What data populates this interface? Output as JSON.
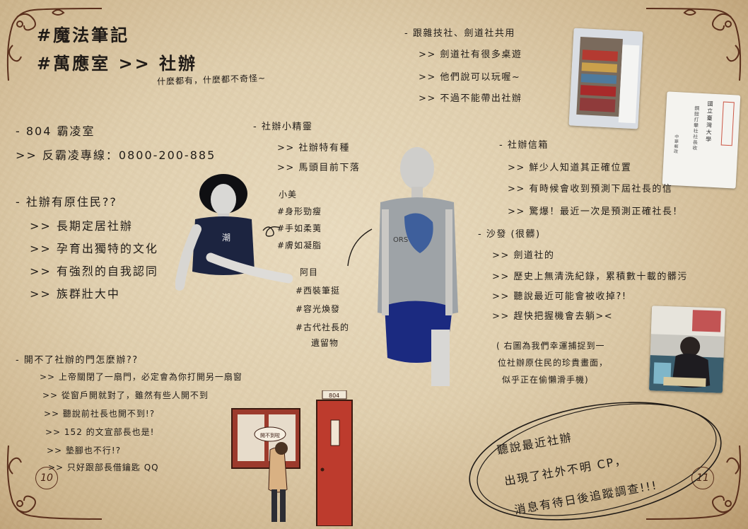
{
  "title": {
    "line1": "#魔法筆記",
    "line2": "#萬應室 >> 社辦",
    "subtitle": "什麼都有，什麼都不奇怪~"
  },
  "room": {
    "line1": "- 804 霸凌室",
    "line2": ">> 反霸凌專線：0800-200-885"
  },
  "natives": {
    "heading": "- 社辦有原住民??",
    "items": [
      ">> 長期定居社辦",
      ">> 孕育出獨特的文化",
      ">> 有強烈的自我認同",
      ">> 族群壯大中"
    ]
  },
  "elves": {
    "heading": "- 社辦小精靈",
    "items": [
      ">> 社辦特有種",
      ">> 馬頭目前下落"
    ],
    "xiaomei": {
      "name": "小美",
      "traits": [
        "#身形勁瘦",
        "#手如柔荑",
        "#膚如凝脂"
      ]
    },
    "amu": {
      "name": "阿目",
      "traits": [
        "#西裝筆挺",
        "#容光煥發",
        "#古代社長的",
        "遺留物"
      ]
    }
  },
  "door": {
    "heading": "- 開不了社辦的門怎麼辦??",
    "items": [
      ">> 上帝關閉了一扇門，必定會為你打開另一扇窗",
      ">> 從窗戶開就對了，雖然有些人開不到",
      ">> 聽說前社長也開不到!?",
      ">> 152 的文宣部長也是!",
      ">> 墊腳也不行!?",
      ">> 只好跟部長借鑰匙 QQ"
    ],
    "sign": "804",
    "speech": "開不到啦"
  },
  "shared": {
    "heading": "- 跟雜技社、劍道社共用",
    "items": [
      ">> 劍道社有很多桌遊",
      ">> 他們說可以玩喔~",
      ">> 不過不能帶出社辦"
    ]
  },
  "mailbox": {
    "heading": "- 社辦信箱",
    "items": [
      ">> 鮮少人知道其正確位置",
      ">> 有時候會收到預測下屆社長的信",
      ">> 驚爆！最近一次是預測正確社長！"
    ]
  },
  "letter": {
    "org": "國立臺灣大學",
    "line2": "鋼鼓打擊社社長收",
    "line3": "中華郵政"
  },
  "sofa": {
    "heading": "- 沙發 (很髒)",
    "items": [
      ">> 劍道社的",
      ">> 歷史上無清洗紀錄，累積數十載的髒污",
      ">> 聽說最近可能會被收掉?!",
      ">> 趕快把握機會去躺><"
    ]
  },
  "caption": {
    "lines": [
      "( 右圖為我們幸運捕捉到一",
      "位社辦原住民的珍貴畫面，",
      "似乎正在偷懶滑手機)"
    ]
  },
  "rumor": {
    "lines": [
      "聽說最近社辦",
      "出現了社外不明 CP，",
      "消息有待日後追蹤調查!!!"
    ]
  },
  "shirt_text": "ORS",
  "page_numbers": {
    "left": "10",
    "right": "11"
  },
  "colors": {
    "paper": "#e3d3b4",
    "ink": "#201b17",
    "door": "#b8392b",
    "ornament": "#5a2f1c"
  }
}
